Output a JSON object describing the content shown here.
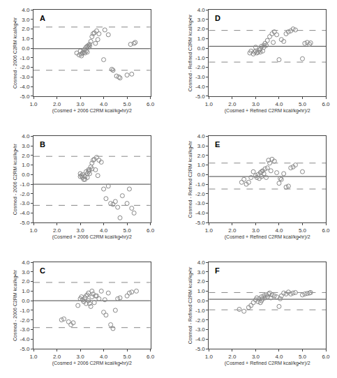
{
  "chart_data": [
    {
      "type": "scatter",
      "annotations": [
        "A"
      ],
      "xlabel": "(Cosmed + 2006 C2RM kcal/kg•hr)/2",
      "ylabel": "Cosmed - 2006 C2RM kcal/kg•hr",
      "x": [
        2.85,
        2.95,
        3.0,
        3.05,
        3.05,
        3.1,
        3.15,
        3.15,
        3.2,
        3.2,
        3.25,
        3.25,
        3.3,
        3.3,
        3.35,
        3.35,
        3.4,
        3.4,
        3.45,
        3.5,
        3.55,
        3.6,
        3.65,
        3.7,
        3.75,
        3.8,
        4.0,
        4.05,
        4.2,
        4.35,
        4.4,
        4.55,
        4.65,
        4.7,
        5.0,
        5.15,
        5.2,
        5.3,
        5.35
      ],
      "values": [
        -0.5,
        -0.7,
        -0.3,
        -0.6,
        -0.8,
        -0.5,
        -0.4,
        -0.2,
        -0.1,
        -0.5,
        0.1,
        -0.3,
        0.2,
        -0.4,
        0.3,
        0.1,
        0.4,
        0.2,
        0.7,
        1.2,
        1.5,
        1.6,
        0.5,
        1.8,
        0.9,
        1.5,
        -1.2,
        1.9,
        1.4,
        -2.2,
        -2.3,
        -2.9,
        -3.0,
        -3.1,
        -2.8,
        0.4,
        -2.7,
        0.5,
        0.6
      ],
      "color": "#888888",
      "marker": "circle-open",
      "mean_line": {
        "value": -0.05,
        "color": "#444444",
        "line_style": "solid"
      },
      "upper_loa": {
        "value": 2.2,
        "color": "#888888",
        "line_style": "dashed"
      },
      "lower_loa": {
        "value": -2.3,
        "color": "#888888",
        "line_style": "dashed"
      },
      "xlim": [
        1.0,
        6.0
      ],
      "ylim": [
        -5.0,
        4.0
      ],
      "xticks": [
        {
          "value": 1.0,
          "label": "1.0"
        },
        {
          "value": 2.0,
          "label": "2.0"
        },
        {
          "value": 3.0,
          "label": "3.0"
        },
        {
          "value": 4.0,
          "label": "4.0"
        },
        {
          "value": 5.0,
          "label": "5.0"
        },
        {
          "value": 6.0,
          "label": "6.0"
        }
      ],
      "yticks": [
        {
          "value": -5.0,
          "label": "-5.0"
        },
        {
          "value": -4.0,
          "label": "-4.0"
        },
        {
          "value": -3.0,
          "label": "-3.0"
        },
        {
          "value": -2.0,
          "label": "-2.0"
        },
        {
          "value": -1.0,
          "label": "-1.0"
        },
        {
          "value": 0.0,
          "label": "0.0"
        },
        {
          "value": 1.0,
          "label": "1.0"
        },
        {
          "value": 2.0,
          "label": "2.0"
        },
        {
          "value": 3.0,
          "label": "3.0"
        },
        {
          "value": 4.0,
          "label": "4.0"
        }
      ],
      "grid": false
    },
    {
      "type": "scatter",
      "annotations": [
        "B"
      ],
      "xlabel": "(Cosmed + 2006 C2RM kcal/kg•hr)/2",
      "ylabel": "Cosmed - 2006 C2RM kcal/kg•hr",
      "x": [
        3.0,
        3.0,
        3.05,
        3.1,
        3.1,
        3.15,
        3.2,
        3.2,
        3.25,
        3.3,
        3.3,
        3.35,
        3.35,
        3.4,
        3.4,
        3.45,
        3.5,
        3.5,
        3.55,
        3.6,
        3.65,
        3.7,
        3.75,
        3.8,
        3.9,
        4.0,
        4.1,
        4.2,
        4.3,
        4.4,
        4.5,
        4.6,
        4.7,
        4.8,
        5.0,
        5.1,
        5.2,
        5.3
      ],
      "values": [
        -0.2,
        0.1,
        -0.1,
        0.0,
        -0.3,
        -0.5,
        -0.5,
        -0.2,
        0.3,
        0.1,
        -0.3,
        0.5,
        0.3,
        0.5,
        0.1,
        0.8,
        1.2,
        0.6,
        1.5,
        1.6,
        0.5,
        1.8,
        -0.1,
        1.5,
        1.3,
        -1.5,
        -2.5,
        -1.2,
        -3.0,
        -3.1,
        -2.8,
        -3.4,
        -4.5,
        -2.2,
        -3.0,
        -1.5,
        -3.5,
        -4.0
      ],
      "color": "#888888",
      "marker": "circle-open",
      "mean_line": {
        "value": -1.0,
        "color": "#444444",
        "line_style": "solid"
      },
      "upper_loa": {
        "value": 1.9,
        "color": "#888888",
        "line_style": "dashed"
      },
      "lower_loa": {
        "value": -3.2,
        "color": "#888888",
        "line_style": "dashed"
      },
      "xlim": [
        1.0,
        6.0
      ],
      "ylim": [
        -5.0,
        4.0
      ],
      "xticks": [
        {
          "value": 1.0,
          "label": "1.0"
        },
        {
          "value": 2.0,
          "label": "2.0"
        },
        {
          "value": 3.0,
          "label": "3.0"
        },
        {
          "value": 4.0,
          "label": "4.0"
        },
        {
          "value": 5.0,
          "label": "5.0"
        },
        {
          "value": 6.0,
          "label": "6.0"
        }
      ],
      "yticks": [
        {
          "value": -5.0,
          "label": "-5.0"
        },
        {
          "value": -4.0,
          "label": "-4.0"
        },
        {
          "value": -3.0,
          "label": "-3.0"
        },
        {
          "value": -2.0,
          "label": "-2.0"
        },
        {
          "value": -1.0,
          "label": "-1.0"
        },
        {
          "value": 0.0,
          "label": "0.0"
        },
        {
          "value": 1.0,
          "label": "1.0"
        },
        {
          "value": 2.0,
          "label": "2.0"
        },
        {
          "value": 3.0,
          "label": "3.0"
        },
        {
          "value": 4.0,
          "label": "4.0"
        }
      ],
      "grid": false
    },
    {
      "type": "scatter",
      "annotations": [
        "C"
      ],
      "xlabel": "(Cosmed + 2006 C2RM kcal/kg•hr)/2",
      "ylabel": "Cosmed - 2006 C2RM kcal/kg•hr",
      "x": [
        2.2,
        2.3,
        2.5,
        2.6,
        2.7,
        2.9,
        3.0,
        3.05,
        3.1,
        3.15,
        3.2,
        3.25,
        3.25,
        3.3,
        3.35,
        3.35,
        3.4,
        3.45,
        3.5,
        3.5,
        3.55,
        3.6,
        3.65,
        3.7,
        3.8,
        3.9,
        4.0,
        4.05,
        4.1,
        4.2,
        4.3,
        4.4,
        4.5,
        4.6,
        4.7,
        5.0,
        5.1,
        5.2,
        5.4
      ],
      "values": [
        -2.0,
        -1.9,
        -2.2,
        -2.5,
        -2.3,
        -0.5,
        0.2,
        0.4,
        0.1,
        -0.1,
        0.3,
        0.5,
        -0.3,
        0.6,
        0.8,
        0.0,
        -0.3,
        -0.6,
        0.4,
        1.0,
        0.7,
        -0.2,
        0.5,
        0.5,
        0.2,
        1.0,
        -1.2,
        0.1,
        -1.5,
        0.8,
        -2.5,
        -2.9,
        -1.0,
        0.2,
        0.3,
        0.5,
        0.8,
        0.9,
        1.0
      ],
      "color": "#888888",
      "marker": "circle-open",
      "mean_line": {
        "value": 0.0,
        "color": "#444444",
        "line_style": "solid"
      },
      "upper_loa": {
        "value": 1.9,
        "color": "#888888",
        "line_style": "dashed"
      },
      "lower_loa": {
        "value": -2.8,
        "color": "#888888",
        "line_style": "dashed"
      },
      "xlim": [
        1.0,
        6.0
      ],
      "ylim": [
        -5.0,
        4.0
      ],
      "xticks": [
        {
          "value": 1.0,
          "label": "1.0"
        },
        {
          "value": 2.0,
          "label": "2.0"
        },
        {
          "value": 3.0,
          "label": "3.0"
        },
        {
          "value": 4.0,
          "label": "4.0"
        },
        {
          "value": 5.0,
          "label": "5.0"
        },
        {
          "value": 6.0,
          "label": "6.0"
        }
      ],
      "yticks": [
        {
          "value": -5.0,
          "label": "-5.0"
        },
        {
          "value": -4.0,
          "label": "-4.0"
        },
        {
          "value": -3.0,
          "label": "-3.0"
        },
        {
          "value": -2.0,
          "label": "-2.0"
        },
        {
          "value": -1.0,
          "label": "-1.0"
        },
        {
          "value": 0.0,
          "label": "0.0"
        },
        {
          "value": 1.0,
          "label": "1.0"
        },
        {
          "value": 2.0,
          "label": "2.0"
        },
        {
          "value": 3.0,
          "label": "3.0"
        },
        {
          "value": 4.0,
          "label": "4.0"
        }
      ],
      "grid": false
    },
    {
      "type": "scatter",
      "annotations": [
        "D"
      ],
      "xlabel": "(Cosmed + Refined C2RM kcal/kg•hr)/2",
      "ylabel": "Cosmed - Refined C2RM kcal/kg•hr",
      "x": [
        2.75,
        2.8,
        2.9,
        2.95,
        3.0,
        3.0,
        3.05,
        3.1,
        3.15,
        3.2,
        3.2,
        3.25,
        3.3,
        3.35,
        3.35,
        3.4,
        3.45,
        3.5,
        3.6,
        3.7,
        3.75,
        3.8,
        3.9,
        4.0,
        4.1,
        4.2,
        4.3,
        4.4,
        4.5,
        4.6,
        4.7,
        5.0,
        5.1,
        5.2,
        5.3,
        5.35
      ],
      "values": [
        -0.5,
        -0.3,
        -0.6,
        -0.4,
        -0.3,
        0.1,
        -0.5,
        -0.4,
        -0.2,
        -0.1,
        -0.4,
        0.2,
        -0.3,
        0.3,
        0.1,
        0.5,
        0.3,
        0.8,
        1.2,
        1.5,
        0.6,
        1.7,
        1.4,
        -1.2,
        0.9,
        0.7,
        1.5,
        1.7,
        1.8,
        2.0,
        1.9,
        -1.1,
        0.5,
        0.6,
        0.4,
        0.55
      ],
      "color": "#888888",
      "marker": "circle-open",
      "mean_line": {
        "value": 0.2,
        "color": "#444444",
        "line_style": "solid"
      },
      "upper_loa": {
        "value": 1.85,
        "color": "#888888",
        "line_style": "dashed"
      },
      "lower_loa": {
        "value": -1.45,
        "color": "#888888",
        "line_style": "dashed"
      },
      "xlim": [
        1.0,
        6.0
      ],
      "ylim": [
        -5.0,
        4.0
      ],
      "xticks": [
        {
          "value": 1.0,
          "label": "1.0"
        },
        {
          "value": 2.0,
          "label": "2.0"
        },
        {
          "value": 3.0,
          "label": "3.0"
        },
        {
          "value": 4.0,
          "label": "4.0"
        },
        {
          "value": 5.0,
          "label": "5.0"
        },
        {
          "value": 6.0,
          "label": "6.0"
        }
      ],
      "yticks": [
        {
          "value": -5.0,
          "label": "-5.0"
        },
        {
          "value": -4.0,
          "label": "-4.0"
        },
        {
          "value": -3.0,
          "label": "-3.0"
        },
        {
          "value": -2.0,
          "label": "-2.0"
        },
        {
          "value": -1.0,
          "label": "-1.0"
        },
        {
          "value": 0.0,
          "label": "0.0"
        },
        {
          "value": 1.0,
          "label": "1.0"
        },
        {
          "value": 2.0,
          "label": "2.0"
        },
        {
          "value": 3.0,
          "label": "3.0"
        },
        {
          "value": 4.0,
          "label": "4.0"
        }
      ],
      "grid": false
    },
    {
      "type": "scatter",
      "annotations": [
        "E"
      ],
      "xlabel": "(Cosmed + Refined C2RM kcal/kg•hr)/2",
      "ylabel": "Cosmed - Refined C2RM kcal/kg•hr",
      "x": [
        2.4,
        2.5,
        2.6,
        2.7,
        2.8,
        2.9,
        3.0,
        3.05,
        3.1,
        3.15,
        3.2,
        3.25,
        3.25,
        3.3,
        3.35,
        3.4,
        3.45,
        3.5,
        3.55,
        3.6,
        3.65,
        3.7,
        3.8,
        3.9,
        4.0,
        4.05,
        4.1,
        4.2,
        4.3,
        4.4,
        4.5,
        4.6,
        4.7,
        5.0
      ],
      "values": [
        -0.8,
        -0.5,
        -1.0,
        -0.8,
        -0.3,
        0.3,
        -0.1,
        -0.3,
        0.0,
        -0.4,
        0.2,
        0.3,
        -0.2,
        0.4,
        0.1,
        0.6,
        -0.3,
        0.7,
        1.5,
        1.2,
        0.4,
        1.6,
        1.4,
        0.2,
        -0.9,
        -0.4,
        -0.5,
        0.1,
        -1.3,
        -1.2,
        0.7,
        0.8,
        1.0,
        0.3
      ],
      "color": "#888888",
      "marker": "circle-open",
      "mean_line": {
        "value": -0.2,
        "color": "#444444",
        "line_style": "solid"
      },
      "upper_loa": {
        "value": 1.2,
        "color": "#888888",
        "line_style": "dashed"
      },
      "lower_loa": {
        "value": -1.5,
        "color": "#888888",
        "line_style": "dashed"
      },
      "xlim": [
        1.0,
        6.0
      ],
      "ylim": [
        -5.0,
        4.0
      ],
      "xticks": [
        {
          "value": 1.0,
          "label": "1.0"
        },
        {
          "value": 2.0,
          "label": "2.0"
        },
        {
          "value": 3.0,
          "label": "3.0"
        },
        {
          "value": 4.0,
          "label": "4.0"
        },
        {
          "value": 5.0,
          "label": "5.0"
        },
        {
          "value": 6.0,
          "label": "6.0"
        }
      ],
      "yticks": [
        {
          "value": -5.0,
          "label": "-5.0"
        },
        {
          "value": -4.0,
          "label": "-4.0"
        },
        {
          "value": -3.0,
          "label": "-3.0"
        },
        {
          "value": -2.0,
          "label": "-2.0"
        },
        {
          "value": -1.0,
          "label": "-1.0"
        },
        {
          "value": 0.0,
          "label": "0.0"
        },
        {
          "value": 1.0,
          "label": "1.0"
        },
        {
          "value": 2.0,
          "label": "2.0"
        },
        {
          "value": 3.0,
          "label": "3.0"
        },
        {
          "value": 4.0,
          "label": "4.0"
        }
      ],
      "grid": false
    },
    {
      "type": "scatter",
      "annotations": [
        "F"
      ],
      "xlabel": "(Cosmed + Refined C2RM kcal/kg•hr)/2",
      "ylabel": "Cosmed - Refined C2RM kcal/kg•hr",
      "x": [
        2.3,
        2.5,
        2.7,
        2.8,
        2.9,
        3.0,
        3.05,
        3.1,
        3.15,
        3.2,
        3.25,
        3.25,
        3.3,
        3.35,
        3.4,
        3.45,
        3.5,
        3.55,
        3.6,
        3.65,
        3.7,
        3.8,
        3.9,
        4.0,
        4.05,
        4.1,
        4.2,
        4.3,
        4.4,
        4.5,
        4.6,
        4.7,
        5.0,
        5.1,
        5.2,
        5.3,
        5.35
      ],
      "values": [
        -0.9,
        -1.1,
        -0.7,
        -0.5,
        -0.2,
        0.1,
        0.3,
        -0.1,
        0.2,
        -0.2,
        0.4,
        0.0,
        0.2,
        0.5,
        0.3,
        0.6,
        0.4,
        0.7,
        0.8,
        0.3,
        0.6,
        0.5,
        0.4,
        -0.6,
        0.2,
        0.5,
        0.8,
        0.7,
        0.9,
        0.7,
        0.8,
        0.85,
        0.6,
        0.7,
        0.75,
        0.8,
        0.85
      ],
      "color": "#888888",
      "marker": "circle-open",
      "mean_line": {
        "value": 0.15,
        "color": "#444444",
        "line_style": "solid"
      },
      "upper_loa": {
        "value": 0.85,
        "color": "#888888",
        "line_style": "dashed"
      },
      "lower_loa": {
        "value": -0.95,
        "color": "#888888",
        "line_style": "dashed"
      },
      "xlim": [
        1.0,
        6.0
      ],
      "ylim": [
        -5.0,
        4.0
      ],
      "xticks": [
        {
          "value": 1.0,
          "label": "1.0"
        },
        {
          "value": 2.0,
          "label": "2.0"
        },
        {
          "value": 3.0,
          "label": "3.0"
        },
        {
          "value": 4.0,
          "label": "4.0"
        },
        {
          "value": 5.0,
          "label": "5.0"
        },
        {
          "value": 6.0,
          "label": "6.0"
        }
      ],
      "yticks": [
        {
          "value": -5.0,
          "label": "-5.0"
        },
        {
          "value": -4.0,
          "label": "-4.0"
        },
        {
          "value": -3.0,
          "label": "-3.0"
        },
        {
          "value": -2.0,
          "label": "-2.0"
        },
        {
          "value": -1.0,
          "label": "-1.0"
        },
        {
          "value": 0.0,
          "label": "0.0"
        },
        {
          "value": 1.0,
          "label": "1.0"
        },
        {
          "value": 2.0,
          "label": "2.0"
        },
        {
          "value": 3.0,
          "label": "3.0"
        },
        {
          "value": 4.0,
          "label": "4.0"
        }
      ],
      "grid": false
    }
  ]
}
